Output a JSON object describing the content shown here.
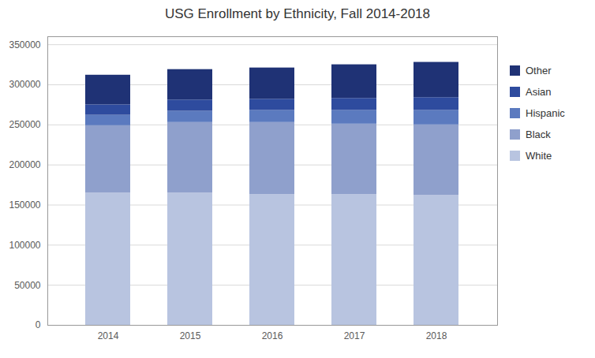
{
  "chart_data": {
    "type": "bar",
    "stacked": true,
    "title": "USG Enrollment by Ethnicity, Fall 2014-2018",
    "categories": [
      "2014",
      "2015",
      "2016",
      "2017",
      "2018"
    ],
    "series": [
      {
        "name": "White",
        "color": "#b8c4e0",
        "values": [
          165000,
          165000,
          163000,
          163000,
          162000
        ]
      },
      {
        "name": "Black",
        "color": "#8fa0cc",
        "values": [
          84000,
          88000,
          90000,
          88000,
          88000
        ]
      },
      {
        "name": "Hispanic",
        "color": "#5b7abf",
        "values": [
          13000,
          14000,
          15000,
          17000,
          18000
        ]
      },
      {
        "name": "Asian",
        "color": "#2e4b9e",
        "values": [
          13000,
          14000,
          14000,
          15000,
          16000
        ]
      },
      {
        "name": "Other",
        "color": "#1f3275",
        "values": [
          37000,
          38000,
          39000,
          42000,
          44000
        ]
      }
    ],
    "ylim": [
      0,
      360000
    ],
    "yticks": [
      0,
      50000,
      100000,
      150000,
      200000,
      250000,
      300000,
      350000
    ],
    "grid": true,
    "legend": "right"
  }
}
